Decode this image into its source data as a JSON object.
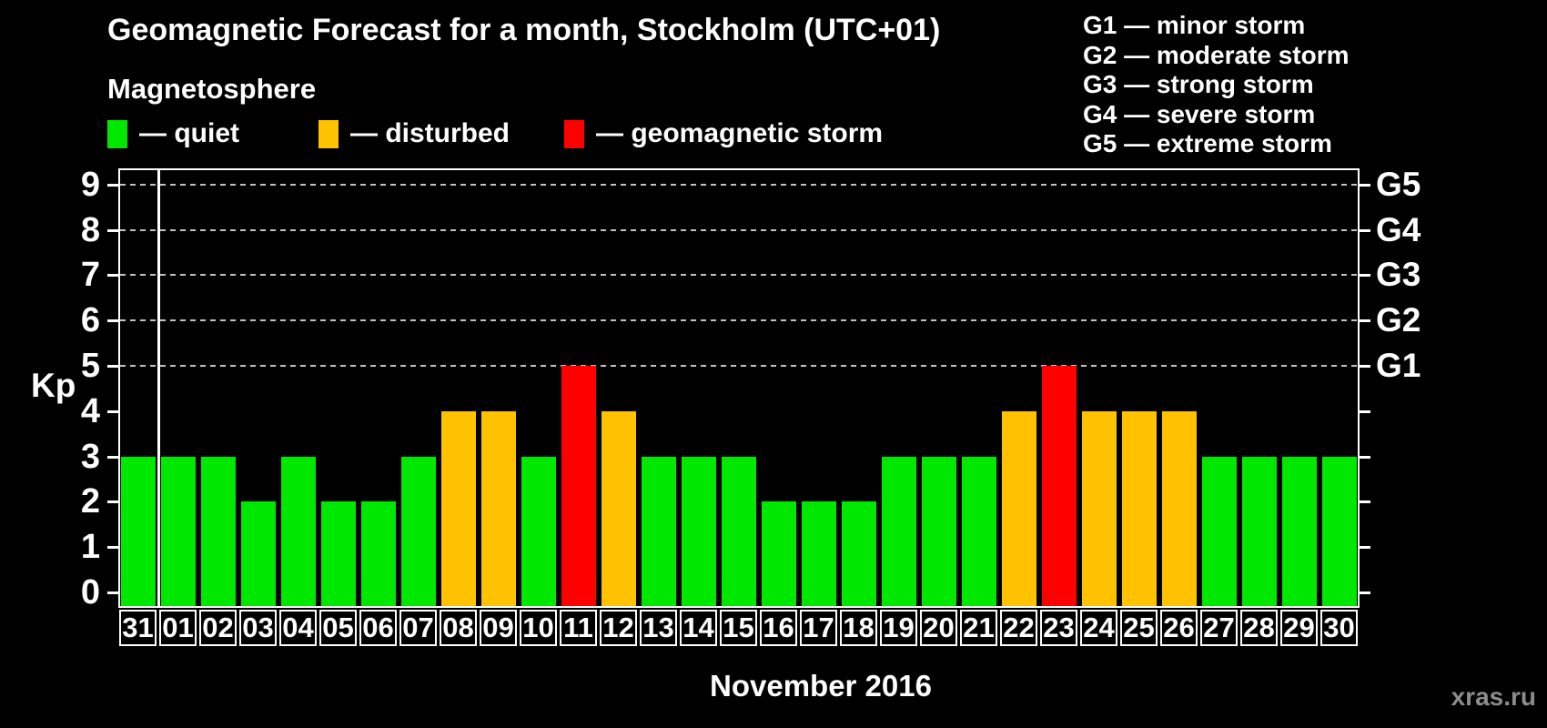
{
  "title": "Geomagnetic Forecast for a month, Stockholm (UTC+01)",
  "subtitle": "Magnetosphere",
  "activity_legend": [
    {
      "key": "quiet",
      "label": "— quiet",
      "color": "#00e800"
    },
    {
      "key": "disturbed",
      "label": "— disturbed",
      "color": "#ffc200"
    },
    {
      "key": "storm",
      "label": "— geomagnetic storm",
      "color": "#ff0000"
    }
  ],
  "storm_scale_legend": [
    "G1 — minor storm",
    "G2 — moderate storm",
    "G3 — strong storm",
    "G4 — severe storm",
    "G5 — extreme storm"
  ],
  "watermark": "xras.ru",
  "axis": {
    "kp_label": "Kp",
    "month_label": "November 2016",
    "left_ticks": [
      0,
      1,
      2,
      3,
      4,
      5,
      6,
      7,
      8,
      9
    ]
  },
  "colors": {
    "background": "#000000",
    "text": "#ffffff",
    "gridline": "#c2c2c2",
    "watermark": "#8c8c8c"
  },
  "chart_data": {
    "type": "bar",
    "title": "Geomagnetic Forecast for a month, Stockholm (UTC+01)",
    "xlabel": "November 2016",
    "ylabel": "Kp",
    "ylim": [
      0,
      9
    ],
    "grid": "horizontal dashed lines at Kp 5-9 only",
    "gridlines_at_kp": [
      5,
      6,
      7,
      8,
      9
    ],
    "legend_position": "top-left",
    "right_axis_labels": [
      {
        "label": "G1",
        "kp": 5
      },
      {
        "label": "G2",
        "kp": 6
      },
      {
        "label": "G3",
        "kp": 7
      },
      {
        "label": "G4",
        "kp": 8
      },
      {
        "label": "G5",
        "kp": 9
      }
    ],
    "month_separator_after_day": "31",
    "bars": [
      {
        "day": "31",
        "kp": 3,
        "status": "quiet"
      },
      {
        "day": "01",
        "kp": 3,
        "status": "quiet"
      },
      {
        "day": "02",
        "kp": 3,
        "status": "quiet"
      },
      {
        "day": "03",
        "kp": 2,
        "status": "quiet"
      },
      {
        "day": "04",
        "kp": 3,
        "status": "quiet"
      },
      {
        "day": "05",
        "kp": 2,
        "status": "quiet"
      },
      {
        "day": "06",
        "kp": 2,
        "status": "quiet"
      },
      {
        "day": "07",
        "kp": 3,
        "status": "quiet"
      },
      {
        "day": "08",
        "kp": 4,
        "status": "disturbed"
      },
      {
        "day": "09",
        "kp": 4,
        "status": "disturbed"
      },
      {
        "day": "10",
        "kp": 3,
        "status": "quiet"
      },
      {
        "day": "11",
        "kp": 5,
        "status": "storm"
      },
      {
        "day": "12",
        "kp": 4,
        "status": "disturbed"
      },
      {
        "day": "13",
        "kp": 3,
        "status": "quiet"
      },
      {
        "day": "14",
        "kp": 3,
        "status": "quiet"
      },
      {
        "day": "15",
        "kp": 3,
        "status": "quiet"
      },
      {
        "day": "16",
        "kp": 2,
        "status": "quiet"
      },
      {
        "day": "17",
        "kp": 2,
        "status": "quiet"
      },
      {
        "day": "18",
        "kp": 2,
        "status": "quiet"
      },
      {
        "day": "19",
        "kp": 3,
        "status": "quiet"
      },
      {
        "day": "20",
        "kp": 3,
        "status": "quiet"
      },
      {
        "day": "21",
        "kp": 3,
        "status": "quiet"
      },
      {
        "day": "22",
        "kp": 4,
        "status": "disturbed"
      },
      {
        "day": "23",
        "kp": 5,
        "status": "storm"
      },
      {
        "day": "24",
        "kp": 4,
        "status": "disturbed"
      },
      {
        "day": "25",
        "kp": 4,
        "status": "disturbed"
      },
      {
        "day": "26",
        "kp": 4,
        "status": "disturbed"
      },
      {
        "day": "27",
        "kp": 3,
        "status": "quiet"
      },
      {
        "day": "28",
        "kp": 3,
        "status": "quiet"
      },
      {
        "day": "29",
        "kp": 3,
        "status": "quiet"
      },
      {
        "day": "30",
        "kp": 3,
        "status": "quiet"
      }
    ]
  }
}
